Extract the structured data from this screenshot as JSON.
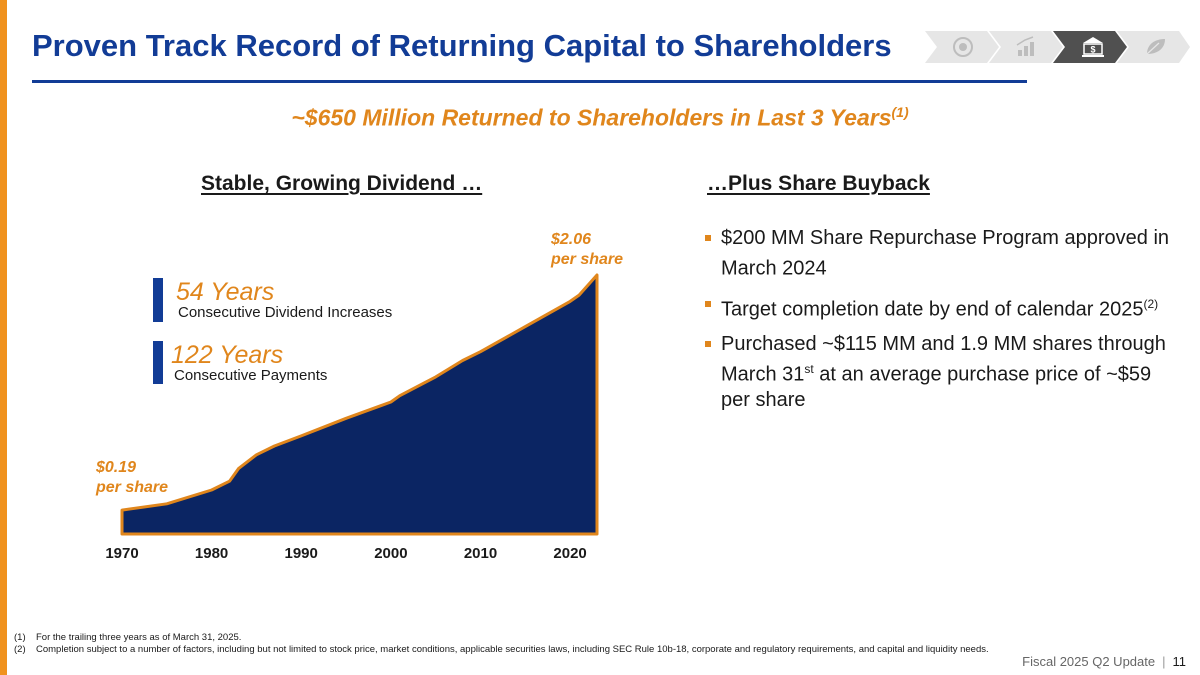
{
  "title": "Proven Track Record of Returning Capital to Shareholders",
  "colors": {
    "primary": "#123C96",
    "accent": "#E0861C",
    "chart_fill": "#0B2563"
  },
  "nav_icons": [
    "security-icon",
    "growth-chart-icon",
    "bank-dollar-icon",
    "leaf-icon"
  ],
  "subtitle": {
    "text": "~$650 Million Returned to Shareholders in Last 3 Years",
    "note": "(1)"
  },
  "left": {
    "heading": "Stable, Growing Dividend …",
    "stat1": {
      "number": "54 Years",
      "label": "Consecutive Dividend Increases"
    },
    "stat2": {
      "number": "122 Years",
      "label": "Consecutive Payments"
    },
    "start_value": {
      "amount": "$0.19",
      "unit": "per share"
    },
    "end_value": {
      "amount": "$2.06",
      "unit": "per share"
    }
  },
  "chart_data": {
    "type": "area",
    "x": [
      1970,
      1975,
      1980,
      1982,
      1983,
      1985,
      1987,
      1990,
      1995,
      2000,
      2001,
      2005,
      2008,
      2010,
      2015,
      2020,
      2021,
      2023
    ],
    "y": [
      0.19,
      0.24,
      0.35,
      0.42,
      0.52,
      0.63,
      0.7,
      0.78,
      0.92,
      1.05,
      1.1,
      1.25,
      1.38,
      1.45,
      1.65,
      1.85,
      1.9,
      2.06
    ],
    "categories": [
      "1970",
      "1980",
      "1990",
      "2000",
      "2010",
      "2020"
    ],
    "xlim": [
      1970,
      2023
    ],
    "ylim": [
      0,
      2.1
    ],
    "grid": false
  },
  "right": {
    "heading": "…Plus Share Buyback",
    "bullets": [
      {
        "pre": "$200 MM Share Repurchase Program approved in March 2024",
        "sup": "",
        "post": ""
      },
      {
        "pre": "Target completion date by end of calendar 2025",
        "sup": "(2)",
        "post": ""
      },
      {
        "pre": "Purchased ~$115 MM and 1.9 MM shares through March 31",
        "sup": "st",
        "post": " at an average purchase price of ~$59 per share"
      }
    ]
  },
  "footnotes": [
    {
      "num": "(1)",
      "text": "For the trailing three years as of March 31, 2025."
    },
    {
      "num": "(2)",
      "text": "Completion subject to a number of factors, including but not limited to stock price, market conditions, applicable securities laws, including SEC Rule 10b-18, corporate and regulatory requirements, and capital and liquidity needs."
    }
  ],
  "footer": {
    "label": "Fiscal 2025 Q2 Update",
    "page": "11"
  }
}
